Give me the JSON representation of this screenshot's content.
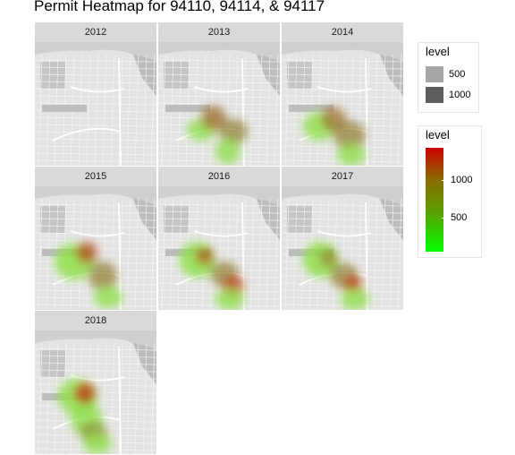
{
  "title": "Permit Heatmap for 94110, 94114, & 94117",
  "panels": [
    {
      "year": "2012"
    },
    {
      "year": "2013"
    },
    {
      "year": "2014"
    },
    {
      "year": "2015"
    },
    {
      "year": "2016"
    },
    {
      "year": "2017"
    },
    {
      "year": "2018"
    }
  ],
  "legend_alpha": {
    "title": "level",
    "items": [
      {
        "label": "500",
        "color": "#a6a6a6"
      },
      {
        "label": "1000",
        "color": "#5e5e5e"
      }
    ]
  },
  "legend_fill": {
    "title": "level",
    "ticks": [
      "1000",
      "500"
    ],
    "colors": {
      "low": "#00ff00",
      "high": "#cc0000"
    }
  }
}
